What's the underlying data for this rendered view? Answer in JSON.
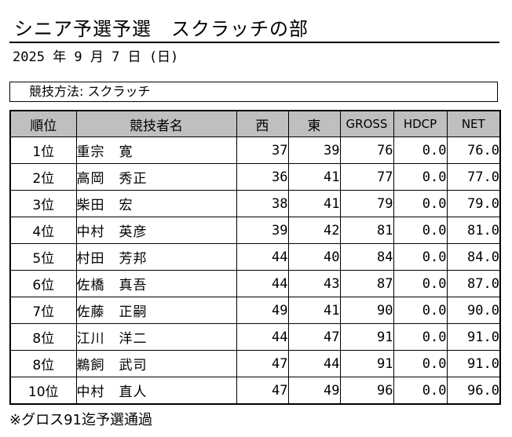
{
  "title": "シニア予選予選　スクラッチの部",
  "date": "2025 年 9 月 7 日 (日)",
  "method": "競技方法: スクラッチ",
  "table": {
    "headers": [
      "順位",
      "競技者名",
      "西",
      "東",
      "GROSS",
      "HDCP",
      "NET"
    ],
    "rows": [
      [
        "1位",
        "重宗　寛",
        "37",
        "39",
        "76",
        "0.0",
        "76.0"
      ],
      [
        "2位",
        "高岡　秀正",
        "36",
        "41",
        "77",
        "0.0",
        "77.0"
      ],
      [
        "3位",
        "柴田　宏",
        "38",
        "41",
        "79",
        "0.0",
        "79.0"
      ],
      [
        "4位",
        "中村　英彦",
        "39",
        "42",
        "81",
        "0.0",
        "81.0"
      ],
      [
        "5位",
        "村田　芳邦",
        "44",
        "40",
        "84",
        "0.0",
        "84.0"
      ],
      [
        "6位",
        "佐橋　真吾",
        "44",
        "43",
        "87",
        "0.0",
        "87.0"
      ],
      [
        "7位",
        "佐藤　正嗣",
        "49",
        "41",
        "90",
        "0.0",
        "90.0"
      ],
      [
        "8位",
        "江川　洋二",
        "44",
        "47",
        "91",
        "0.0",
        "91.0"
      ],
      [
        "8位",
        "鵜飼　武司",
        "47",
        "44",
        "91",
        "0.0",
        "91.0"
      ],
      [
        "10位",
        "中村　直人",
        "47",
        "49",
        "96",
        "0.0",
        "96.0"
      ]
    ]
  },
  "footnote": "※グロス91迄予選通過",
  "colors": {
    "header_bg": "#bfbfbf"
  }
}
